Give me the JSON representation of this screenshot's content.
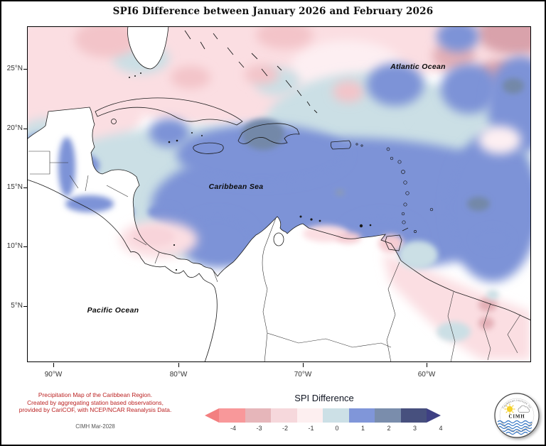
{
  "title": "SPI6 Difference between January 2026 and February 2026",
  "map": {
    "labels": {
      "atlantic": "Atlantic Ocean",
      "caribbean": "Caribbean Sea",
      "pacific": "Pacific Ocean"
    },
    "y_axis": {
      "ticks": [
        "25°N",
        "20°N",
        "15°N",
        "10°N",
        "5°N"
      ]
    },
    "x_axis": {
      "ticks": [
        "90°W",
        "80°W",
        "70°W",
        "60°W"
      ]
    },
    "palette": {
      "pink_light": "#fbdee2",
      "pink_medium": "#f3c4c9",
      "mauve": "#d9a2ab",
      "pink_faint": "#fdeff2",
      "blue_light": "#cbdfe5",
      "blue_medium": "#7d93d7",
      "blue_slate": "#7388a8",
      "land": "#ffffff",
      "coastline": "#1a1a1a"
    }
  },
  "legend": {
    "title": "SPI Difference",
    "tick_labels": [
      "-4",
      "-3",
      "-2",
      "-1",
      "0",
      "1",
      "2",
      "3",
      "4"
    ],
    "swatches": [
      "#f8989a",
      "#e6b6ba",
      "#f6d8dc",
      "#fdeff0",
      "#cce0e6",
      "#8096d9",
      "#7a8dac",
      "#47507e"
    ],
    "arrow_left_color": "#f37f80",
    "arrow_right_color": "#3e4083"
  },
  "attribution": {
    "lines": [
      "Precipitation Map of the Caribbean Region.",
      "Created by aggregating station based observations,",
      "provided by CariCOF, with NCEP/NCAR Reanalysis Data."
    ],
    "credit": "CIMH Mar-2028",
    "text_color": "#bb2222"
  },
  "logo": {
    "acronym": "CIMH",
    "ring_text_top": "Caribbean Institute for",
    "ring_text_bottom": "Meteorology and Hydrology"
  }
}
